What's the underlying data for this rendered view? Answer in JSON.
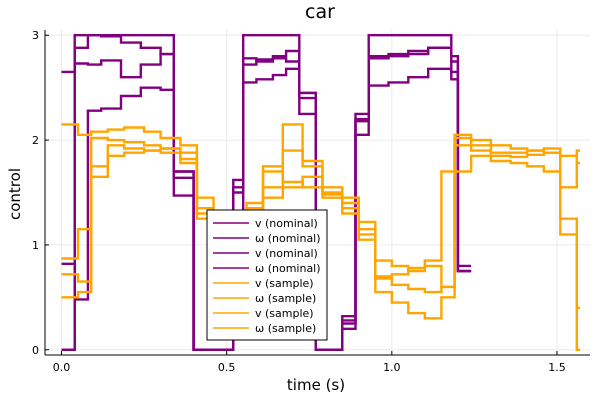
{
  "chart_data": {
    "type": "line",
    "title": "car",
    "xlabel": "time (s)",
    "ylabel": "control",
    "xlim": [
      -0.05,
      1.6
    ],
    "ylim": [
      -0.05,
      3.05
    ],
    "xticks": [
      0.0,
      0.5,
      1.0,
      1.5
    ],
    "xtick_labels": [
      "0.0",
      "0.5",
      "1.0",
      "1.5"
    ],
    "yticks": [
      0,
      1,
      2,
      3
    ],
    "ytick_labels": [
      "0",
      "1",
      "2",
      "3"
    ],
    "grid": true,
    "legend_position": "bottom-center",
    "step": "post",
    "colors": {
      "nominal": "#800080",
      "sample": "#ffa500"
    },
    "series": [
      {
        "name": "v (nominal)",
        "color": "#800080",
        "x": [
          0.0,
          0.04,
          0.08,
          0.12,
          0.18,
          0.24,
          0.3,
          0.34,
          0.4,
          0.5,
          0.52,
          0.55,
          0.59,
          0.64,
          0.68,
          0.72,
          0.77,
          0.85,
          0.89,
          0.93,
          0.99,
          1.05,
          1.11,
          1.18,
          1.2,
          1.24
        ],
        "y": [
          0.0,
          2.88,
          3.0,
          3.0,
          3.0,
          3.0,
          3.0,
          1.7,
          0.0,
          0.0,
          1.5,
          3.0,
          3.0,
          3.0,
          3.0,
          2.4,
          0.0,
          0.25,
          2.2,
          3.0,
          3.0,
          3.0,
          3.0,
          2.75,
          0.8,
          0.8
        ]
      },
      {
        "name": "ω (nominal)",
        "color": "#800080",
        "x": [
          0.0,
          0.04,
          0.08,
          0.12,
          0.18,
          0.24,
          0.3,
          0.34,
          0.4,
          0.5,
          0.52,
          0.55,
          0.59,
          0.64,
          0.68,
          0.72,
          0.77,
          0.85,
          0.89,
          0.93,
          0.99,
          1.05,
          1.11,
          1.18,
          1.2,
          1.24
        ],
        "y": [
          2.65,
          3.0,
          3.0,
          2.99,
          2.93,
          2.88,
          2.82,
          1.7,
          0.0,
          0.0,
          1.62,
          2.78,
          2.75,
          2.78,
          2.75,
          2.45,
          0.0,
          0.32,
          2.25,
          2.8,
          2.82,
          2.85,
          2.88,
          2.8,
          0.75,
          0.75
        ]
      },
      {
        "name": "v (nominal)",
        "color": "#800080",
        "x": [
          0.0,
          0.04,
          0.08,
          0.12,
          0.18,
          0.24,
          0.3,
          0.34,
          0.4,
          0.5,
          0.52,
          0.55,
          0.59,
          0.64,
          0.68,
          0.72,
          0.77,
          0.85,
          0.89,
          0.93,
          0.99,
          1.05,
          1.11,
          1.18,
          1.2,
          1.24
        ],
        "y": [
          0.82,
          0.48,
          2.28,
          2.3,
          2.42,
          2.5,
          2.48,
          1.47,
          0.0,
          0.0,
          1.3,
          2.55,
          2.58,
          2.62,
          2.68,
          2.25,
          0.0,
          0.2,
          2.05,
          2.52,
          2.55,
          2.6,
          2.68,
          2.58,
          0.75,
          0.75
        ]
      },
      {
        "name": "ω (nominal)",
        "color": "#800080",
        "x": [
          0.0,
          0.04,
          0.08,
          0.12,
          0.18,
          0.24,
          0.3,
          0.34,
          0.4,
          0.5,
          0.52,
          0.55,
          0.59,
          0.64,
          0.68,
          0.72,
          0.77,
          0.85,
          0.89,
          0.93,
          0.99,
          1.05,
          1.11,
          1.18,
          1.2,
          1.24
        ],
        "y": [
          0.0,
          2.73,
          2.72,
          2.76,
          2.6,
          2.72,
          2.82,
          1.64,
          0.0,
          0.0,
          1.55,
          2.72,
          2.77,
          2.8,
          2.85,
          2.45,
          0.0,
          0.28,
          2.18,
          2.78,
          2.8,
          2.82,
          2.88,
          2.65,
          0.75,
          0.75
        ]
      },
      {
        "name": "v (sample)",
        "color": "#ffa500",
        "x": [
          0.0,
          0.05,
          0.09,
          0.14,
          0.19,
          0.25,
          0.3,
          0.36,
          0.41,
          0.46,
          0.51,
          0.56,
          0.61,
          0.67,
          0.73,
          0.79,
          0.85,
          0.9,
          0.95,
          1.0,
          1.05,
          1.1,
          1.15,
          1.19,
          1.24,
          1.3,
          1.36,
          1.41,
          1.46,
          1.51,
          1.56,
          1.57
        ],
        "y": [
          2.15,
          2.05,
          2.08,
          2.1,
          2.12,
          2.08,
          2.02,
          1.95,
          1.45,
          0.6,
          0.95,
          1.3,
          1.7,
          2.15,
          1.8,
          1.55,
          1.45,
          1.15,
          0.85,
          0.8,
          0.75,
          0.8,
          0.6,
          2.05,
          1.95,
          1.88,
          1.88,
          1.9,
          1.92,
          1.1,
          0.0,
          0.0
        ]
      },
      {
        "name": "ω (sample)",
        "color": "#ffa500",
        "x": [
          0.0,
          0.05,
          0.09,
          0.14,
          0.19,
          0.25,
          0.3,
          0.36,
          0.41,
          0.46,
          0.51,
          0.56,
          0.61,
          0.67,
          0.73,
          0.79,
          0.85,
          0.9,
          0.95,
          1.0,
          1.05,
          1.1,
          1.15,
          1.19,
          1.24,
          1.3,
          1.36,
          1.41,
          1.46,
          1.51,
          1.56,
          1.57
        ],
        "y": [
          0.5,
          0.55,
          2.02,
          2.0,
          1.98,
          1.95,
          1.92,
          1.88,
          1.25,
          0.7,
          0.82,
          1.15,
          1.55,
          1.9,
          1.75,
          1.48,
          1.35,
          1.05,
          0.7,
          0.62,
          0.58,
          0.55,
          0.6,
          1.95,
          1.9,
          1.85,
          1.84,
          1.86,
          1.88,
          1.55,
          1.9,
          1.9
        ]
      },
      {
        "name": "v (sample)",
        "color": "#ffa500",
        "x": [
          0.0,
          0.05,
          0.09,
          0.14,
          0.19,
          0.25,
          0.3,
          0.36,
          0.41,
          0.46,
          0.51,
          0.56,
          0.61,
          0.67,
          0.73,
          0.79,
          0.85,
          0.9,
          0.95,
          1.0,
          1.05,
          1.1,
          1.15,
          1.19,
          1.24,
          1.3,
          1.36,
          1.41,
          1.46,
          1.51,
          1.56,
          1.57
        ],
        "y": [
          0.72,
          0.65,
          1.65,
          1.85,
          1.88,
          1.9,
          1.92,
          1.82,
          1.3,
          0.75,
          1.0,
          1.35,
          1.45,
          1.55,
          1.65,
          1.5,
          1.4,
          1.1,
          0.55,
          0.45,
          0.35,
          0.3,
          0.5,
          1.7,
          1.85,
          1.8,
          1.78,
          1.75,
          1.7,
          1.25,
          0.4,
          0.4
        ]
      },
      {
        "name": "ω (sample)",
        "color": "#ffa500",
        "x": [
          0.0,
          0.05,
          0.09,
          0.14,
          0.19,
          0.25,
          0.3,
          0.36,
          0.41,
          0.46,
          0.51,
          0.56,
          0.61,
          0.67,
          0.73,
          0.79,
          0.85,
          0.9,
          0.95,
          1.0,
          1.05,
          1.1,
          1.15,
          1.19,
          1.24,
          1.3,
          1.36,
          1.41,
          1.46,
          1.51,
          1.56,
          1.57
        ],
        "y": [
          0.87,
          1.15,
          1.75,
          1.95,
          1.92,
          1.9,
          1.88,
          1.78,
          1.35,
          0.9,
          1.1,
          1.4,
          1.75,
          1.6,
          1.55,
          1.45,
          1.3,
          1.22,
          0.68,
          0.72,
          0.78,
          0.85,
          1.7,
          2.02,
          2.0,
          1.95,
          1.92,
          1.9,
          1.88,
          1.85,
          1.78,
          1.78
        ]
      }
    ]
  }
}
